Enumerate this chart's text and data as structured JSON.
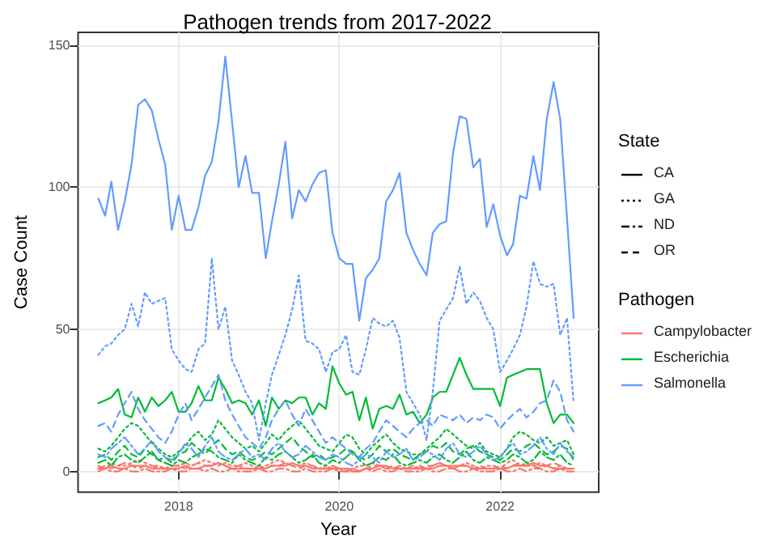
{
  "chart_data": {
    "type": "line",
    "title": "Pathogen trends from 2017-2022",
    "xlabel": "Year",
    "ylabel": "Case Count",
    "legend_title": [
      "State",
      "Pathogen"
    ],
    "annotations": [
      "CA",
      "GA",
      "ND",
      "OR",
      "Campylobacter",
      "Escherichia",
      "Salmonella"
    ],
    "x": [
      "2017-01",
      "2017-02",
      "2017-03",
      "2017-04",
      "2017-05",
      "2017-06",
      "2017-07",
      "2017-08",
      "2017-09",
      "2017-10",
      "2017-11",
      "2017-12",
      "2018-01",
      "2018-02",
      "2018-03",
      "2018-04",
      "2018-05",
      "2018-06",
      "2018-07",
      "2018-08",
      "2018-09",
      "2018-10",
      "2018-11",
      "2018-12",
      "2019-01",
      "2019-02",
      "2019-03",
      "2019-04",
      "2019-05",
      "2019-06",
      "2019-07",
      "2019-08",
      "2019-09",
      "2019-10",
      "2019-11",
      "2019-12",
      "2020-01",
      "2020-02",
      "2020-03",
      "2020-04",
      "2020-05",
      "2020-06",
      "2020-07",
      "2020-08",
      "2020-09",
      "2020-10",
      "2020-11",
      "2020-12",
      "2021-01",
      "2021-02",
      "2021-03",
      "2021-04",
      "2021-05",
      "2021-06",
      "2021-07",
      "2021-08",
      "2021-09",
      "2021-10",
      "2021-11",
      "2021-12",
      "2022-01",
      "2022-02",
      "2022-03",
      "2022-04",
      "2022-05",
      "2022-06",
      "2022-07",
      "2022-08",
      "2022-09",
      "2022-10",
      "2022-11",
      "2022-12"
    ],
    "xlim": [
      "2016-10-01",
      "2023-03-25"
    ],
    "xticks": [
      "2018",
      "2020",
      "2022"
    ],
    "ylim": [
      -7.3,
      154.5
    ],
    "yticks": [
      0,
      50,
      100,
      150
    ],
    "grid": true,
    "marker": "none",
    "series": [
      {
        "color": "#f8766d",
        "line_style": "solid",
        "values": [
          1,
          1,
          2,
          1,
          1,
          2,
          2,
          2,
          1,
          1,
          1,
          1,
          1,
          2,
          1,
          1,
          2,
          2,
          3,
          2,
          1,
          1,
          1,
          1,
          1,
          1,
          2,
          2,
          2,
          3,
          2,
          2,
          1,
          1,
          1,
          1,
          1,
          1,
          0,
          0,
          1,
          1,
          2,
          2,
          1,
          1,
          1,
          1,
          1,
          1,
          1,
          2,
          2,
          2,
          2,
          2,
          1,
          1,
          1,
          1,
          1,
          1,
          2,
          2,
          2,
          3,
          2,
          2,
          1,
          1,
          1,
          1
        ]
      },
      {
        "color": "#f8766d",
        "line_style": "dotted",
        "values": [
          2,
          1,
          3,
          2,
          2,
          3,
          4,
          3,
          2,
          2,
          1,
          2,
          2,
          3,
          2,
          3,
          4,
          3,
          2,
          3,
          2,
          2,
          3,
          2,
          1,
          2,
          3,
          4,
          3,
          2,
          2,
          3,
          2,
          1,
          2,
          1,
          1,
          0,
          1,
          2,
          2,
          3,
          2,
          1,
          1,
          2,
          1,
          1,
          2,
          1,
          2,
          3,
          2,
          1,
          2,
          3,
          2,
          1,
          2,
          2,
          1,
          3,
          4,
          2,
          3,
          2,
          3,
          2,
          1,
          2,
          1,
          1
        ]
      },
      {
        "color": "#f8766d",
        "line_style": "dashdot",
        "values": [
          0,
          1,
          0,
          0,
          1,
          0,
          0,
          1,
          0,
          0,
          0,
          1,
          0,
          0,
          1,
          1,
          0,
          1,
          0,
          0,
          1,
          0,
          0,
          0,
          1,
          0,
          0,
          1,
          1,
          0,
          0,
          1,
          0,
          0,
          0,
          1,
          0,
          0,
          0,
          0,
          1,
          0,
          1,
          0,
          0,
          1,
          0,
          0,
          0,
          1,
          0,
          0,
          1,
          1,
          0,
          0,
          1,
          0,
          0,
          0,
          1,
          0,
          0,
          1,
          0,
          1,
          1,
          0,
          0,
          1,
          0,
          0
        ]
      },
      {
        "color": "#f8766d",
        "line_style": "dashed",
        "values": [
          1,
          2,
          1,
          2,
          3,
          2,
          1,
          2,
          2,
          1,
          1,
          2,
          2,
          1,
          2,
          3,
          2,
          2,
          3,
          2,
          1,
          2,
          1,
          1,
          2,
          1,
          2,
          2,
          3,
          2,
          1,
          2,
          2,
          1,
          1,
          2,
          1,
          1,
          1,
          0,
          1,
          2,
          2,
          1,
          2,
          1,
          1,
          2,
          1,
          2,
          2,
          3,
          2,
          1,
          2,
          2,
          1,
          2,
          1,
          1,
          2,
          1,
          2,
          3,
          2,
          2,
          1,
          2,
          3,
          2,
          1,
          1
        ]
      },
      {
        "color": "#00ba38",
        "line_style": "solid",
        "values": [
          24,
          25,
          26,
          29,
          20,
          19,
          26,
          21,
          26,
          23,
          25,
          28,
          21,
          21,
          24,
          30,
          25,
          25,
          33,
          29,
          24,
          25,
          24,
          20,
          25,
          16,
          26,
          22,
          25,
          24,
          26,
          26,
          20,
          24,
          22,
          37,
          31,
          27,
          28,
          18,
          26,
          15,
          22,
          23,
          22,
          27,
          20,
          21,
          17,
          20,
          26,
          28,
          28,
          34,
          40,
          34,
          29,
          29,
          29,
          29,
          23,
          33,
          34,
          35,
          36,
          36,
          36,
          24,
          17,
          20,
          20,
          17
        ]
      },
      {
        "color": "#00ba38",
        "line_style": "dotted",
        "values": [
          8,
          7,
          9,
          12,
          15,
          17,
          16,
          13,
          10,
          8,
          6,
          5,
          7,
          9,
          12,
          14,
          11,
          13,
          18,
          15,
          12,
          10,
          8,
          9,
          7,
          10,
          13,
          11,
          14,
          16,
          18,
          15,
          12,
          9,
          8,
          7,
          10,
          13,
          12,
          8,
          6,
          9,
          11,
          13,
          10,
          8,
          7,
          6,
          6,
          8,
          10,
          12,
          15,
          13,
          11,
          9,
          8,
          10,
          7,
          6,
          5,
          8,
          12,
          14,
          13,
          11,
          10,
          12,
          9,
          10,
          11,
          6
        ]
      },
      {
        "color": "#00ba38",
        "line_style": "dashdot",
        "values": [
          3,
          4,
          2,
          5,
          6,
          4,
          3,
          5,
          7,
          4,
          3,
          2,
          4,
          3,
          5,
          6,
          8,
          7,
          5,
          4,
          3,
          6,
          4,
          3,
          2,
          5,
          4,
          6,
          7,
          5,
          3,
          4,
          6,
          3,
          2,
          4,
          3,
          5,
          7,
          4,
          2,
          3,
          5,
          4,
          6,
          3,
          2,
          3,
          4,
          3,
          5,
          6,
          4,
          3,
          5,
          7,
          4,
          3,
          5,
          4,
          3,
          4,
          6,
          5,
          3,
          4,
          7,
          5,
          4,
          6,
          3,
          2
        ]
      },
      {
        "color": "#00ba38",
        "line_style": "dashed",
        "values": [
          5,
          6,
          4,
          7,
          9,
          6,
          5,
          8,
          6,
          4,
          5,
          3,
          6,
          7,
          10,
          8,
          6,
          9,
          11,
          8,
          6,
          7,
          5,
          4,
          5,
          7,
          6,
          8,
          10,
          12,
          9,
          7,
          5,
          6,
          4,
          5,
          6,
          8,
          7,
          5,
          4,
          6,
          9,
          7,
          8,
          6,
          5,
          4,
          6,
          7,
          9,
          8,
          10,
          7,
          6,
          8,
          9,
          7,
          6,
          5,
          4,
          6,
          8,
          7,
          9,
          10,
          8,
          6,
          7,
          9,
          8,
          4
        ]
      },
      {
        "color": "#619cff",
        "line_style": "solid",
        "values": [
          96,
          90,
          102,
          85,
          95,
          108,
          129,
          131,
          127,
          117,
          108,
          85,
          97,
          85,
          85,
          93,
          104,
          109,
          123,
          146,
          123,
          100,
          111,
          98,
          98,
          75,
          88,
          101,
          116,
          89,
          99,
          95,
          101,
          105,
          106,
          84,
          75,
          73,
          73,
          53,
          68,
          71,
          75,
          95,
          99,
          105,
          84,
          78,
          73,
          69,
          84,
          87,
          88,
          112,
          125,
          124,
          107,
          110,
          86,
          94,
          83,
          76,
          80,
          97,
          96,
          111,
          99,
          124,
          137,
          124,
          89,
          54
        ]
      },
      {
        "color": "#619cff",
        "line_style": "dotted",
        "values": [
          41,
          44,
          45,
          48,
          50,
          59,
          51,
          63,
          59,
          60,
          61,
          43,
          39,
          36,
          35,
          43,
          45,
          75,
          50,
          58,
          39,
          34,
          28,
          24,
          11,
          24,
          34,
          41,
          48,
          57,
          69,
          46,
          45,
          43,
          35,
          42,
          43,
          48,
          35,
          34,
          43,
          54,
          52,
          51,
          53,
          47,
          28,
          24,
          20,
          11,
          28,
          53,
          57,
          61,
          72,
          59,
          63,
          60,
          54,
          50,
          35,
          39,
          43,
          48,
          58,
          74,
          66,
          65,
          66,
          48,
          54,
          24
        ]
      },
      {
        "color": "#619cff",
        "line_style": "dashdot",
        "values": [
          6,
          5,
          8,
          10,
          12,
          9,
          6,
          8,
          11,
          7,
          5,
          4,
          6,
          10,
          8,
          5,
          9,
          12,
          7,
          5,
          4,
          6,
          8,
          5,
          6,
          4,
          8,
          10,
          7,
          5,
          6,
          9,
          7,
          5,
          4,
          6,
          5,
          3,
          2,
          4,
          6,
          5,
          3,
          7,
          5,
          6,
          8,
          4,
          5,
          7,
          6,
          4,
          8,
          10,
          6,
          5,
          7,
          9,
          6,
          4,
          5,
          8,
          10,
          6,
          7,
          9,
          12,
          8,
          6,
          10,
          7,
          5
        ]
      },
      {
        "color": "#619cff",
        "line_style": "dashed",
        "values": [
          16,
          17,
          14,
          20,
          24,
          28,
          22,
          18,
          15,
          12,
          10,
          14,
          20,
          24,
          18,
          22,
          26,
          30,
          34,
          25,
          20,
          16,
          12,
          10,
          8,
          12,
          18,
          22,
          25,
          20,
          16,
          22,
          18,
          14,
          10,
          12,
          10,
          8,
          6,
          5,
          8,
          10,
          14,
          18,
          16,
          14,
          12,
          15,
          17,
          18,
          16,
          20,
          19,
          18,
          20,
          17,
          19,
          18,
          20,
          19,
          15,
          18,
          20,
          22,
          19,
          21,
          24,
          25,
          32,
          28,
          18,
          14
        ]
      }
    ]
  }
}
